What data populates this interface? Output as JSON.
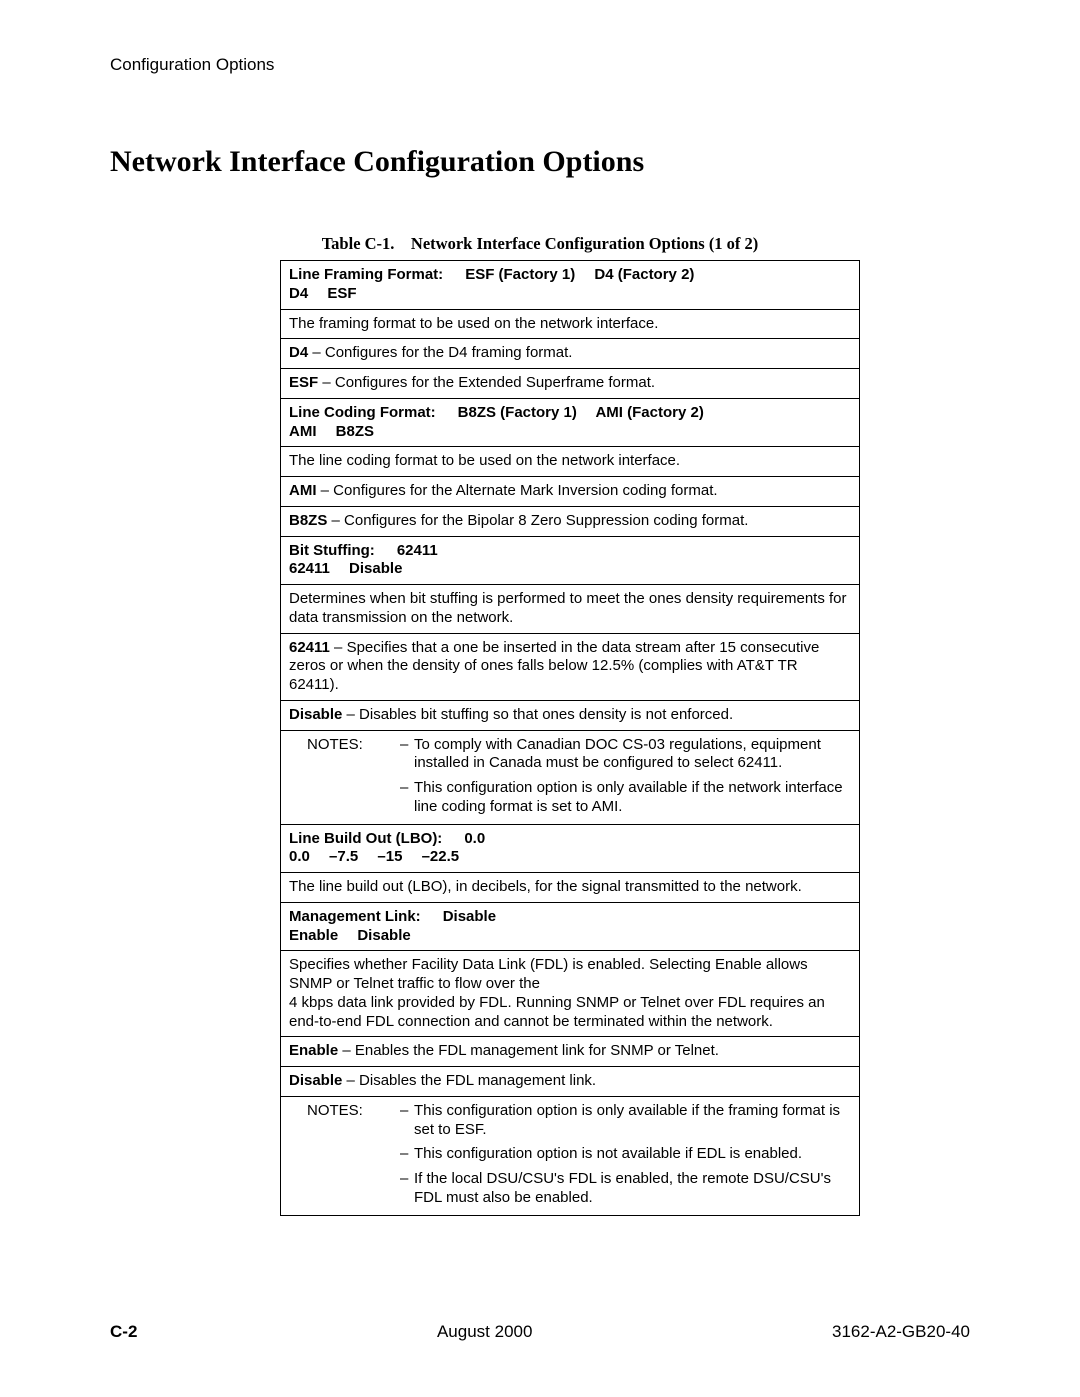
{
  "header": {
    "running": "Configuration Options"
  },
  "title": "Network Interface Configuration Options",
  "caption": "Table C-1. Network Interface Configuration Options (1 of 2)",
  "sections": {
    "lineFraming": {
      "label": "Line Framing Format:",
      "defaults": "ESF (Factory 1)  D4 (Factory 2)",
      "choices": "D4  ESF",
      "desc": "The framing format to be used on the network interface.",
      "d4": {
        "label": "D4",
        "text": " – Configures for the D4 framing format."
      },
      "esf": {
        "label": "ESF",
        "text": " – Configures for the Extended Superframe format."
      }
    },
    "lineCoding": {
      "label": "Line Coding Format:",
      "defaults": "B8ZS (Factory 1)  AMI (Factory 2)",
      "choices": "AMI  B8ZS",
      "desc": "The line coding format to be used on the network interface.",
      "ami": {
        "label": "AMI",
        "text": " – Configures for the Alternate Mark Inversion coding format."
      },
      "b8zs": {
        "label": "B8ZS",
        "text": " – Configures for the Bipolar 8 Zero Suppression coding format."
      }
    },
    "bitStuffing": {
      "label": "Bit Stuffing:",
      "defaults": "62411",
      "choices": "62411  Disable",
      "desc": "Determines when bit stuffing is performed to meet the ones density requirements for data transmission on the network.",
      "o62411": {
        "label": "62411",
        "text": " – Specifies that a one be inserted in the data stream after 15 consecutive zeros or when the density of ones falls below 12.5% (complies with AT&T TR 62411)."
      },
      "disable": {
        "label": "Disable",
        "text": " – Disables bit stuffing so that ones density is not enforced."
      },
      "notesLabel": "NOTES:",
      "note1": "To comply with Canadian DOC CS-03 regulations, equipment installed in Canada must be configured to select 62411.",
      "note2": "This configuration option is only available if the network interface line coding format is set to AMI."
    },
    "lbo": {
      "label": "Line Build Out (LBO):",
      "defaults": "0.0",
      "choices": "0.0  –7.5  –15  –22.5",
      "desc": "The line build out (LBO), in decibels, for the signal transmitted to the network."
    },
    "mgmtLink": {
      "label": "Management Link:",
      "defaults": "Disable",
      "choices": "Enable  Disable",
      "desc": "Specifies whether Facility Data Link (FDL) is enabled. Selecting Enable allows SNMP or Telnet traffic to flow over the",
      "desc2": "4 kbps data link provided by FDL. Running SNMP or Telnet over FDL requires an end-to-end FDL connection and cannot be terminated within the network.",
      "enable": {
        "label": "Enable",
        "text": " – Enables the FDL management link for SNMP or Telnet."
      },
      "disable": {
        "label": "Disable",
        "text": " – Disables the FDL management link."
      },
      "notesLabel": "NOTES:",
      "note1": "This configuration option is only available if the framing format is set to ESF.",
      "note2": "This configuration option is not available if EDL is enabled.",
      "note3": "If the local DSU/CSU's FDL is enabled, the remote DSU/CSU's FDL must also be enabled."
    }
  },
  "footer": {
    "pageNum": "C-2",
    "date": "August 2000",
    "docNum": "3162-A2-GB20-40"
  }
}
